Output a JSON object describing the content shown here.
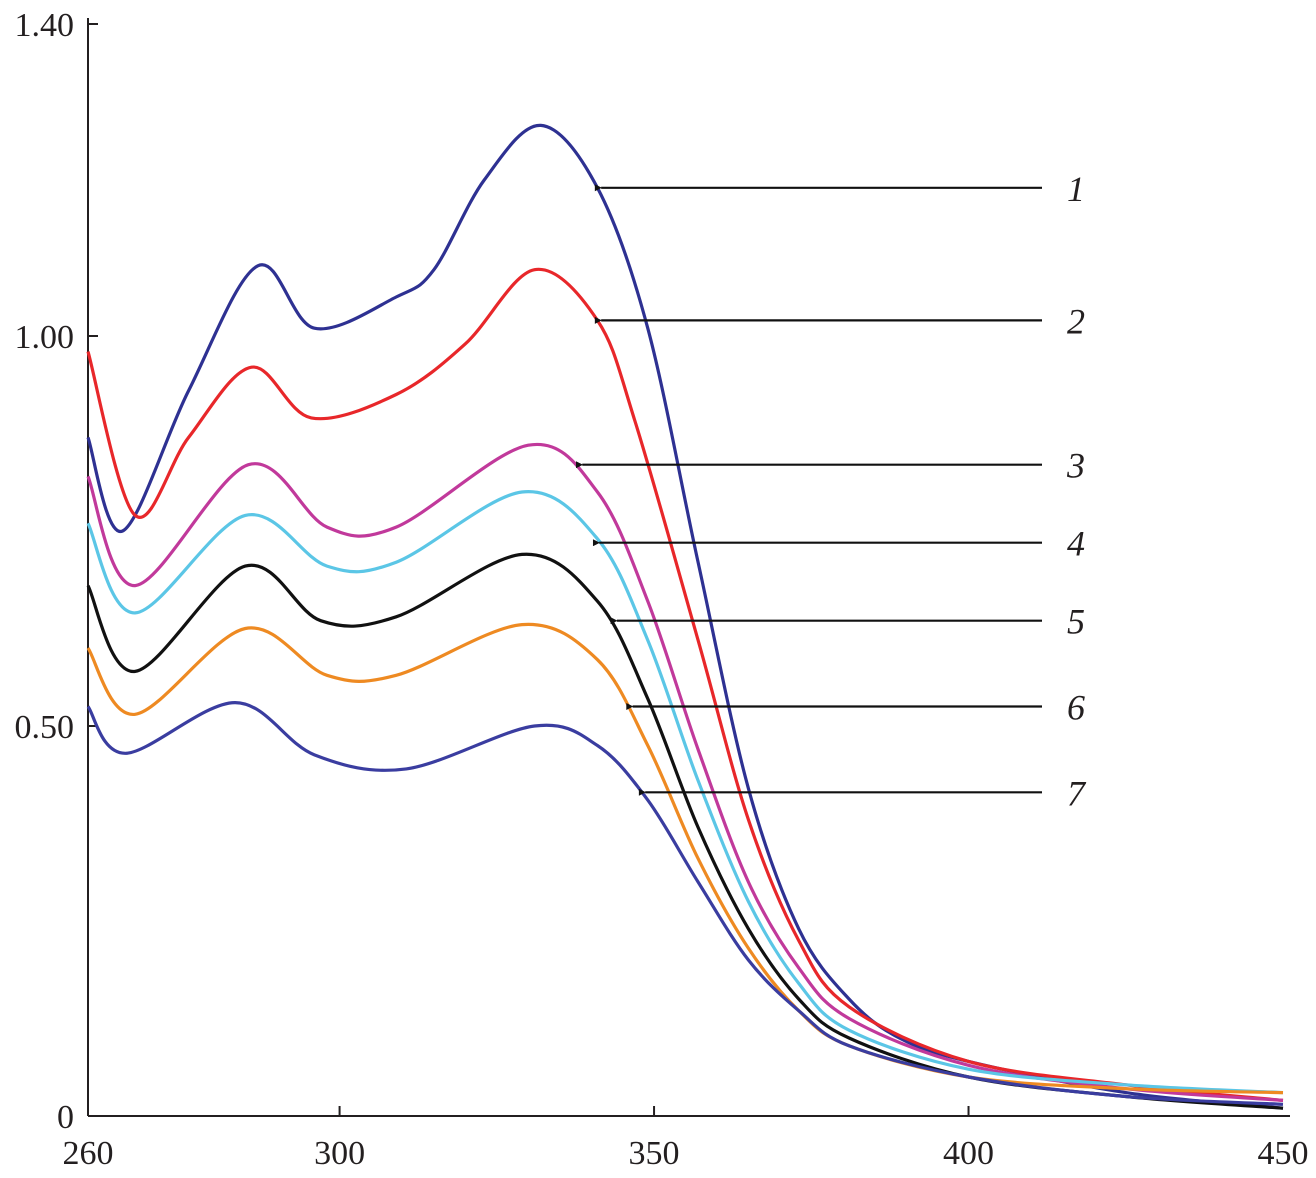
{
  "chart_data": {
    "type": "line",
    "title": "",
    "xlabel": "",
    "ylabel": "",
    "xlim": [
      260,
      450
    ],
    "ylim": [
      0,
      1.4
    ],
    "x_ticks": [
      260,
      300,
      350,
      400,
      450
    ],
    "x_tick_labels": [
      "260",
      "300",
      "350",
      "400",
      "450"
    ],
    "y_ticks": [
      0,
      0.5,
      1.0,
      1.4
    ],
    "y_tick_labels": [
      "0",
      "0.50",
      "1.00",
      "1.40"
    ],
    "grid": false,
    "legend": "arrow-annotations-right",
    "series": [
      {
        "label": "1",
        "color": "#2e3192",
        "x": [
          260,
          265.5,
          276,
          287,
          296,
          309,
          315,
          323,
          332,
          341,
          349,
          357,
          365,
          373,
          381,
          389,
          400,
          425,
          450
        ],
        "y": [
          0.87,
          0.75,
          0.93,
          1.09,
          1.01,
          1.05,
          1.085,
          1.2,
          1.27,
          1.19,
          1.01,
          0.71,
          0.42,
          0.24,
          0.15,
          0.1,
          0.07,
          0.03,
          0.01
        ],
        "arrow": {
          "x": 340,
          "y": 1.19
        },
        "label_y": 1.19
      },
      {
        "label": "2",
        "color": "#e8272a",
        "x": [
          260,
          267.5,
          276,
          286,
          295.5,
          309,
          320,
          331,
          341,
          347,
          357,
          365,
          373,
          381,
          400,
          425,
          450
        ],
        "y": [
          0.98,
          0.77,
          0.87,
          0.96,
          0.895,
          0.925,
          0.99,
          1.085,
          1.02,
          0.89,
          0.61,
          0.38,
          0.225,
          0.14,
          0.07,
          0.04,
          0.02
        ],
        "arrow": {
          "x": 340,
          "y": 1.02
        },
        "label_y": 1.02
      },
      {
        "label": "3",
        "color": "#c1399b",
        "x": [
          260,
          267.5,
          285.5,
          298,
          309,
          330,
          341,
          349,
          357,
          365,
          373,
          381,
          400,
          425,
          450
        ],
        "y": [
          0.82,
          0.68,
          0.835,
          0.755,
          0.755,
          0.86,
          0.8,
          0.66,
          0.47,
          0.3,
          0.19,
          0.125,
          0.065,
          0.035,
          0.02
        ],
        "arrow": {
          "x": 337,
          "y": 0.835
        },
        "label_y": 0.835
      },
      {
        "label": "4",
        "color": "#5bc6e6",
        "x": [
          260,
          267.5,
          285,
          298,
          309,
          329,
          341,
          349,
          357,
          365,
          373,
          381,
          400,
          425,
          450
        ],
        "y": [
          0.76,
          0.645,
          0.77,
          0.705,
          0.71,
          0.8,
          0.74,
          0.61,
          0.43,
          0.275,
          0.17,
          0.11,
          0.06,
          0.04,
          0.03
        ],
        "arrow": {
          "x": 339.7,
          "y": 0.735
        },
        "label_y": 0.735
      },
      {
        "label": "5",
        "color": "#111111",
        "x": [
          260,
          267.5,
          285,
          297,
          309,
          329,
          341,
          349,
          357,
          365,
          373,
          381,
          400,
          425,
          450
        ],
        "y": [
          0.68,
          0.57,
          0.705,
          0.635,
          0.64,
          0.72,
          0.66,
          0.535,
          0.37,
          0.24,
          0.15,
          0.1,
          0.05,
          0.025,
          0.01
        ],
        "arrow": {
          "x": 342.5,
          "y": 0.635
        },
        "label_y": 0.635
      },
      {
        "label": "6",
        "color": "#ee8a22",
        "x": [
          260,
          267.5,
          285,
          298,
          309,
          329,
          341,
          349,
          357,
          365,
          373,
          381,
          400,
          425,
          450
        ],
        "y": [
          0.6,
          0.515,
          0.625,
          0.565,
          0.565,
          0.63,
          0.585,
          0.475,
          0.33,
          0.215,
          0.135,
          0.09,
          0.05,
          0.035,
          0.03
        ],
        "arrow": {
          "x": 345,
          "y": 0.525
        },
        "label_y": 0.525
      },
      {
        "label": "7",
        "color": "#3a3da0",
        "x": [
          260,
          266,
          283.4,
          296,
          310.6,
          331,
          341,
          349,
          357,
          365,
          373,
          381,
          400,
          425,
          450
        ],
        "y": [
          0.525,
          0.465,
          0.53,
          0.463,
          0.445,
          0.5,
          0.475,
          0.405,
          0.3,
          0.2,
          0.135,
          0.09,
          0.05,
          0.025,
          0.015
        ],
        "arrow": {
          "x": 347,
          "y": 0.415
        },
        "label_y": 0.415
      }
    ]
  }
}
